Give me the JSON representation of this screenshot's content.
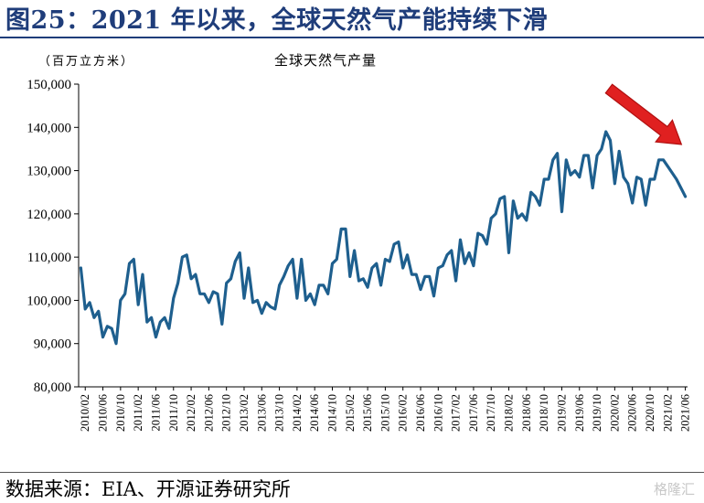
{
  "figure": {
    "title": "图25：2021 年以来，全球天然气产能持续下滑",
    "source": "数据来源：EIA、开源证券研究所",
    "watermark": "格隆汇"
  },
  "colors": {
    "line": "#1e5f8e",
    "arrow": "#e02020",
    "title": "#1f3d7a"
  },
  "chart_data": {
    "type": "line",
    "title": "全球天然气产量",
    "unit_label": "（百万立方米）",
    "ylim": [
      80000,
      150000
    ],
    "y_ticks": [
      80000,
      90000,
      100000,
      110000,
      120000,
      130000,
      140000,
      150000
    ],
    "y_tick_labels": [
      "80,000",
      "90,000",
      "100,000",
      "110,000",
      "120,000",
      "130,000",
      "140,000",
      "150,000"
    ],
    "x_tick_labels": [
      "2010/02",
      "2010/06",
      "2010/10",
      "2011/02",
      "2011/06",
      "2011/10",
      "2012/02",
      "2012/06",
      "2012/10",
      "2013/02",
      "2013/06",
      "2013/10",
      "2014/02",
      "2014/06",
      "2014/10",
      "2015/02",
      "2015/06",
      "2015/10",
      "2016/02",
      "2016/06",
      "2016/10",
      "2017/02",
      "2017/06",
      "2017/10",
      "2018/02",
      "2018/06",
      "2018/10",
      "2019/02",
      "2019/06",
      "2019/10",
      "2020/02",
      "2020/06",
      "2020/10",
      "2021/02",
      "2021/06"
    ],
    "start_month": "2010/01",
    "series": [
      {
        "name": "全球天然气产量",
        "values": [
          107500,
          98000,
          99500,
          96000,
          97500,
          91500,
          94000,
          93500,
          90000,
          100000,
          101500,
          108500,
          109500,
          99000,
          106000,
          95000,
          96000,
          91500,
          95000,
          96000,
          93500,
          100500,
          104000,
          110000,
          110500,
          105000,
          106000,
          101500,
          101500,
          99500,
          102000,
          101500,
          94500,
          104000,
          105000,
          109000,
          111000,
          100500,
          107500,
          99500,
          100000,
          97000,
          99500,
          98500,
          98000,
          103500,
          105500,
          108000,
          109500,
          100500,
          109500,
          100000,
          101500,
          99000,
          103500,
          103500,
          101500,
          108500,
          109500,
          116500,
          116500,
          105500,
          111500,
          104500,
          105000,
          103000,
          107500,
          108500,
          103500,
          109500,
          109000,
          113000,
          113500,
          107500,
          110500,
          106000,
          106000,
          102500,
          105500,
          105500,
          101000,
          107500,
          108000,
          110500,
          111500,
          104500,
          114000,
          108500,
          111000,
          108000,
          115500,
          115000,
          113000,
          119000,
          120000,
          123500,
          124000,
          111000,
          123000,
          119000,
          120000,
          118500,
          125000,
          124000,
          122000,
          128000,
          128000,
          132500,
          134000,
          120500,
          132500,
          129000,
          130000,
          128500,
          133500,
          133500,
          126000,
          133500,
          135000,
          139000,
          137000,
          127000,
          134500,
          128500,
          127000,
          122500,
          128500,
          128000,
          122000,
          128000,
          128000,
          132500,
          132500,
          131000,
          129500,
          128000,
          126000,
          124000
        ]
      }
    ],
    "annotation": "red arrow indicating decline since 2021"
  }
}
